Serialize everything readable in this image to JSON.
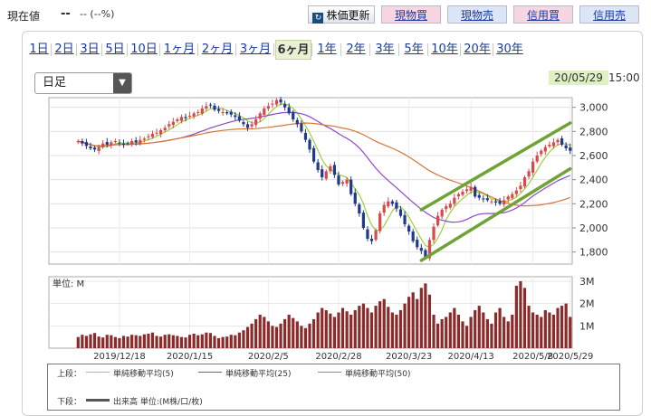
{
  "header": {
    "price_label": "現在値",
    "price_value": "--",
    "price_change": "-- (--%)",
    "refresh_label": "株価更新",
    "refresh_icon": "refresh-icon",
    "buttons": {
      "spot_buy": "現物買",
      "spot_sell": "現物売",
      "margin_buy": "信用買",
      "margin_sell": "信用売"
    }
  },
  "period_tabs": [
    "1日",
    "2日",
    "3日",
    "5日",
    "10日",
    "1ヶ月",
    "2ヶ月",
    "3ヶ月",
    "6ヶ月",
    "1年",
    "2年",
    "3年",
    "5年",
    "10年",
    "20年",
    "30年"
  ],
  "active_tab": "6ヶ月",
  "candle_type": {
    "selected": "日足"
  },
  "timestamp": {
    "date": "20/05/29",
    "time": "15:00"
  },
  "colors": {
    "up": "#d84a4a",
    "down": "#1f3a8a",
    "ma5": "#9ed13a",
    "ma25": "#8a4ac8",
    "ma50": "#d8743a",
    "trendline": "#6fa336",
    "volume": "#8c2a2a",
    "accent": "#dff0c4"
  },
  "chart_data": [
    {
      "type": "candlestick",
      "x_tick_labels": [
        "2019/12/18",
        "2020/1/15",
        "2020/2/5",
        "2020/2/28",
        "2020/3/23",
        "2020/4/13",
        "2020/5/8",
        "2020/5/29"
      ],
      "y_ticks": [
        1800,
        2000,
        2200,
        2400,
        2600,
        2800,
        3000
      ],
      "ylim": [
        1700,
        3080
      ],
      "closes": [
        2720,
        2700,
        2680,
        2660,
        2650,
        2670,
        2700,
        2690,
        2710,
        2720,
        2700,
        2690,
        2700,
        2720,
        2710,
        2730,
        2740,
        2760,
        2780,
        2790,
        2810,
        2830,
        2860,
        2880,
        2900,
        2920,
        2910,
        2930,
        2950,
        2960,
        2990,
        3010,
        3020,
        2980,
        2970,
        2960,
        2950,
        2940,
        2920,
        2890,
        2860,
        2830,
        2860,
        2900,
        2950,
        2990,
        3010,
        3030,
        3060,
        3040,
        3000,
        2950,
        2900,
        2860,
        2800,
        2730,
        2650,
        2550,
        2480,
        2420,
        2470,
        2510,
        2440,
        2360,
        2380,
        2400,
        2280,
        2200,
        2120,
        2000,
        1910,
        1890,
        1980,
        2120,
        2190,
        2220,
        2200,
        2160,
        2100,
        2030,
        1970,
        1890,
        1840,
        1810,
        1760,
        1900,
        2010,
        2100,
        2150,
        2180,
        2200,
        2250,
        2280,
        2300,
        2320,
        2340,
        2260,
        2250,
        2240,
        2230,
        2220,
        2210,
        2200,
        2230,
        2260,
        2280,
        2310,
        2350,
        2420,
        2470,
        2550,
        2600,
        2640,
        2670,
        2690,
        2710,
        2730,
        2690,
        2660,
        2640
      ],
      "series": [
        {
          "name": "単純移動平均(5)",
          "period": 5
        },
        {
          "name": "単純移動平均(25)",
          "period": 25
        },
        {
          "name": "単純移動平均(50)",
          "period": 50
        }
      ],
      "trendlines": [
        {
          "from": [
            83,
            2150
          ],
          "to": [
            119,
            2870
          ]
        },
        {
          "from": [
            83,
            1730
          ],
          "to": [
            119,
            2490
          ]
        }
      ]
    },
    {
      "type": "bar",
      "unit_label": "単位: M",
      "y_ticks": [
        "1M",
        "2M",
        "3M"
      ],
      "ylim": [
        0,
        3.2
      ],
      "values": [
        0.5,
        0.6,
        0.55,
        0.62,
        0.68,
        0.52,
        0.48,
        0.6,
        0.58,
        0.5,
        0.45,
        0.55,
        0.52,
        0.6,
        0.58,
        0.55,
        0.62,
        0.65,
        0.7,
        0.55,
        0.52,
        0.6,
        0.62,
        0.58,
        0.55,
        0.5,
        0.48,
        0.6,
        0.65,
        0.58,
        0.62,
        0.7,
        0.68,
        0.55,
        0.45,
        0.5,
        0.52,
        0.6,
        0.58,
        0.7,
        0.8,
        0.95,
        1.1,
        1.3,
        1.5,
        1.4,
        1.2,
        1.0,
        0.95,
        1.1,
        1.3,
        1.5,
        1.35,
        1.2,
        1.0,
        0.9,
        1.1,
        1.3,
        1.6,
        1.8,
        1.7,
        1.55,
        1.4,
        1.6,
        1.8,
        1.65,
        1.5,
        1.7,
        1.9,
        2.0,
        1.8,
        1.6,
        1.9,
        2.1,
        2.2,
        1.85,
        1.6,
        1.5,
        1.7,
        2.0,
        2.3,
        2.5,
        2.2,
        2.7,
        2.9,
        2.4,
        1.5,
        1.1,
        1.3,
        1.4,
        1.6,
        1.8,
        1.5,
        1.2,
        1.0,
        1.4,
        1.7,
        1.9,
        1.6,
        1.3,
        1.1,
        1.6,
        1.8,
        1.4,
        1.2,
        1.5,
        2.8,
        3.0,
        2.7,
        1.9,
        1.6,
        1.5,
        1.4,
        1.7,
        1.6,
        1.5,
        1.8,
        1.9,
        2.0,
        1.4
      ]
    }
  ],
  "legend": {
    "upper_label": "上段：",
    "lower_label": "下段：",
    "volume_label": "出来高 単位:(M株/口/枚)",
    "ma5": "単純移動平均(5)",
    "ma25": "単純移動平均(25)",
    "ma50": "単純移動平均(50)"
  }
}
